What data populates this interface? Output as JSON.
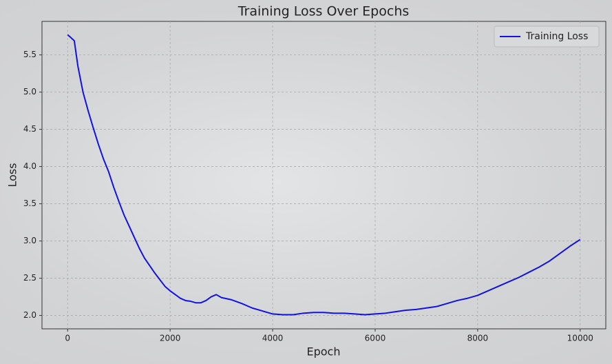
{
  "chart_data": {
    "type": "line",
    "title": "Training Loss Over Epochs",
    "x_label": "Epoch",
    "y_label": "Loss",
    "x": [
      0,
      50,
      130,
      200,
      300,
      400,
      500,
      600,
      700,
      800,
      900,
      1000,
      1100,
      1200,
      1300,
      1400,
      1500,
      1600,
      1700,
      1800,
      1900,
      2000,
      2100,
      2200,
      2300,
      2400,
      2500,
      2600,
      2700,
      2800,
      2900,
      3000,
      3200,
      3400,
      3600,
      3800,
      4000,
      4200,
      4400,
      4600,
      4800,
      5000,
      5200,
      5400,
      5600,
      5800,
      6000,
      6200,
      6400,
      6600,
      6800,
      7000,
      7200,
      7400,
      7600,
      7800,
      8000,
      8200,
      8400,
      8600,
      8800,
      9000,
      9200,
      9400,
      9600,
      9800,
      10000
    ],
    "series": [
      {
        "name": "Training Loss",
        "color": "#1212e0",
        "values": [
          5.77,
          5.74,
          5.69,
          5.35,
          5.0,
          4.75,
          4.52,
          4.3,
          4.1,
          3.93,
          3.72,
          3.53,
          3.35,
          3.2,
          3.05,
          2.9,
          2.77,
          2.67,
          2.57,
          2.48,
          2.39,
          2.33,
          2.28,
          2.23,
          2.2,
          2.19,
          2.17,
          2.17,
          2.2,
          2.25,
          2.28,
          2.24,
          2.21,
          2.16,
          2.1,
          2.06,
          2.02,
          2.01,
          2.01,
          2.03,
          2.04,
          2.04,
          2.03,
          2.03,
          2.02,
          2.01,
          2.02,
          2.03,
          2.05,
          2.07,
          2.08,
          2.1,
          2.12,
          2.16,
          2.2,
          2.23,
          2.27,
          2.33,
          2.39,
          2.45,
          2.51,
          2.58,
          2.65,
          2.73,
          2.83,
          2.93,
          3.02
        ]
      }
    ],
    "xlim": [
      -500,
      10500
    ],
    "ylim": [
      1.82,
      5.95
    ],
    "xticks": [
      0,
      2000,
      4000,
      6000,
      8000,
      10000
    ],
    "yticks": [
      {
        "value": 2,
        "label": "2.0"
      },
      2.5,
      {
        "value": 3,
        "label": "3.0"
      },
      3.5,
      {
        "value": 4,
        "label": "4.0"
      },
      4.5,
      {
        "value": 5,
        "label": "5.0"
      },
      5.5
    ],
    "grid": true,
    "legend": "upper right"
  }
}
